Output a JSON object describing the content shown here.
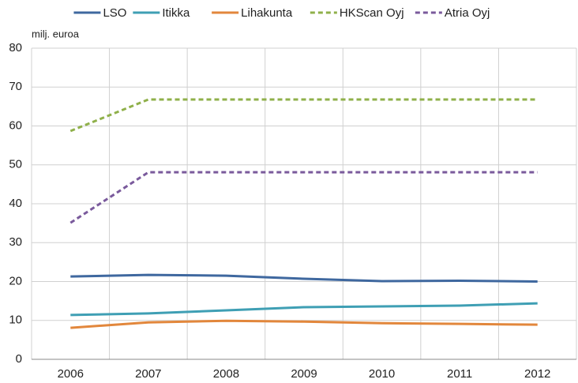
{
  "chart_data": {
    "type": "line",
    "y_label": "milj. euroa",
    "categories": [
      "2006",
      "2007",
      "2008",
      "2009",
      "2010",
      "2011",
      "2012"
    ],
    "series": [
      {
        "name": "LSO",
        "color": "#3f689f",
        "style": "solid",
        "values": [
          21.3,
          21.7,
          21.5,
          20.7,
          20.1,
          20.2,
          20.0
        ]
      },
      {
        "name": "Itikka",
        "color": "#3f9fb4",
        "style": "solid",
        "values": [
          11.4,
          11.8,
          12.6,
          13.4,
          13.6,
          13.8,
          14.4
        ]
      },
      {
        "name": "Lihakunta",
        "color": "#e2873c",
        "style": "solid",
        "values": [
          8.1,
          9.5,
          9.9,
          9.7,
          9.3,
          9.1,
          8.9
        ]
      },
      {
        "name": "HKScan Oyj",
        "color": "#8fb04a",
        "style": "dashed",
        "values": [
          58.7,
          66.8,
          66.8,
          66.8,
          66.8,
          66.8,
          66.8
        ]
      },
      {
        "name": "Atria Oyj",
        "color": "#7a5a9c",
        "style": "dashed",
        "values": [
          35.1,
          48.1,
          48.1,
          48.1,
          48.1,
          48.1,
          48.1
        ]
      }
    ],
    "ylim": [
      0,
      80
    ],
    "yticks": [
      0,
      10,
      20,
      30,
      40,
      50,
      60,
      70,
      80
    ],
    "grid": true,
    "legend": "top"
  }
}
